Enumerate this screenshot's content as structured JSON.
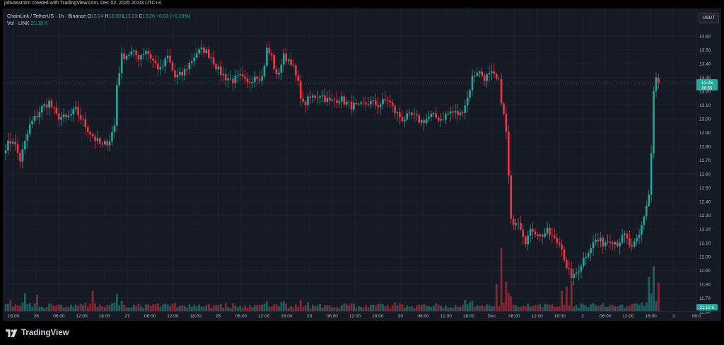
{
  "credit": "jobvassmirn created with TradingView.com, Dec 02, 2025 20:03 UTC+3",
  "legend": {
    "symbol": "ChainLink / TetherUS · 1h · Binance",
    "o_key": "O",
    "o_val": "13.24",
    "h_key": "H",
    "h_val": "13.30",
    "l_key": "L",
    "l_val": "13.23",
    "c_key": "C",
    "c_val": "13.26",
    "change": "+0.03 (+0.23%)",
    "vol_label": "Vol · LINK",
    "vol_value": "21.18 K"
  },
  "currency_button": "USDT",
  "brand": "TradingView",
  "price_tag": {
    "price": "13.26",
    "countdown": "56:55"
  },
  "volume_tag": "21.18 K",
  "colors": {
    "up": "#26a69a",
    "down": "#f23645",
    "background": "#161a25",
    "grid": "#232632"
  },
  "chart_data": {
    "type": "candlestick",
    "symbol": "LINKUSDT",
    "interval": "1h",
    "y_ticks": [
      "13.60",
      "13.50",
      "13.40",
      "13.30",
      "13.20",
      "13.10",
      "13.00",
      "12.90",
      "12.80",
      "12.70",
      "12.60",
      "12.50",
      "12.40",
      "12.30",
      "12.20",
      "12.10",
      "12.00",
      "11.90",
      "11.80",
      "11.70",
      "11.60"
    ],
    "ylim": [
      11.6,
      13.62
    ],
    "x_ticks": [
      "18:00",
      "26",
      "06:00",
      "12:00",
      "18:00",
      "27",
      "06:00",
      "12:00",
      "18:00",
      "28",
      "06:00",
      "12:00",
      "18:00",
      "29",
      "06:00",
      "12:00",
      "18:00",
      "30",
      "06:00",
      "12:00",
      "18:00",
      "Dec",
      "06:00",
      "12:00",
      "18:00",
      "2",
      "06:00",
      "12:00",
      "18:00",
      "3",
      "06:0"
    ],
    "last_price": 13.26,
    "anchors": [
      [
        0,
        12.8
      ],
      [
        3,
        12.85
      ],
      [
        6,
        12.7
      ],
      [
        10,
        12.95
      ],
      [
        15,
        13.08
      ],
      [
        18,
        13.12
      ],
      [
        21,
        13.02
      ],
      [
        25,
        13.0
      ],
      [
        29,
        13.06
      ],
      [
        33,
        12.95
      ],
      [
        37,
        12.85
      ],
      [
        40,
        12.8
      ],
      [
        43,
        12.85
      ],
      [
        45,
        12.95
      ],
      [
        46,
        13.25
      ],
      [
        48,
        13.45
      ],
      [
        52,
        13.48
      ],
      [
        55,
        13.45
      ],
      [
        58,
        13.5
      ],
      [
        61,
        13.42
      ],
      [
        64,
        13.35
      ],
      [
        67,
        13.45
      ],
      [
        70,
        13.3
      ],
      [
        73,
        13.32
      ],
      [
        76,
        13.4
      ],
      [
        79,
        13.48
      ],
      [
        82,
        13.5
      ],
      [
        85,
        13.45
      ],
      [
        88,
        13.35
      ],
      [
        91,
        13.3
      ],
      [
        94,
        13.28
      ],
      [
        97,
        13.3
      ],
      [
        100,
        13.25
      ],
      [
        103,
        13.32
      ],
      [
        106,
        13.3
      ],
      [
        108,
        13.5
      ],
      [
        110,
        13.45
      ],
      [
        112,
        13.3
      ],
      [
        115,
        13.45
      ],
      [
        118,
        13.42
      ],
      [
        121,
        13.25
      ],
      [
        123,
        13.1
      ],
      [
        126,
        13.15
      ],
      [
        130,
        13.18
      ],
      [
        134,
        13.12
      ],
      [
        138,
        13.15
      ],
      [
        142,
        13.1
      ],
      [
        146,
        13.08
      ],
      [
        150,
        13.12
      ],
      [
        154,
        13.1
      ],
      [
        158,
        13.14
      ],
      [
        161,
        13.05
      ],
      [
        164,
        13.0
      ],
      [
        168,
        13.02
      ],
      [
        172,
        12.98
      ],
      [
        176,
        13.02
      ],
      [
        180,
        13.0
      ],
      [
        184,
        13.05
      ],
      [
        188,
        13.03
      ],
      [
        191,
        13.15
      ],
      [
        193,
        13.3
      ],
      [
        195,
        13.35
      ],
      [
        198,
        13.3
      ],
      [
        201,
        13.32
      ],
      [
        204,
        13.26
      ],
      [
        207,
        12.9
      ],
      [
        209,
        12.25
      ],
      [
        212,
        12.27
      ],
      [
        215,
        12.12
      ],
      [
        218,
        12.2
      ],
      [
        221,
        12.15
      ],
      [
        224,
        12.18
      ],
      [
        227,
        12.12
      ],
      [
        230,
        12.08
      ],
      [
        232,
        11.9
      ],
      [
        235,
        11.85
      ],
      [
        238,
        11.95
      ],
      [
        241,
        12.05
      ],
      [
        244,
        12.12
      ],
      [
        247,
        12.1
      ],
      [
        250,
        12.13
      ],
      [
        253,
        12.1
      ],
      [
        256,
        12.15
      ],
      [
        259,
        12.05
      ],
      [
        262,
        12.15
      ],
      [
        264,
        12.3
      ],
      [
        266,
        12.45
      ],
      [
        267,
        12.75
      ],
      [
        268,
        13.2
      ],
      [
        269,
        13.3
      ],
      [
        270,
        13.26
      ],
      [
        271,
        13.26
      ]
    ],
    "volume_spikes": [
      [
        2,
        0.22
      ],
      [
        8,
        0.37
      ],
      [
        13,
        0.33
      ],
      [
        36,
        0.42
      ],
      [
        46,
        0.35
      ],
      [
        190,
        0.23
      ],
      [
        203,
        0.55
      ],
      [
        205,
        1.3
      ],
      [
        207,
        0.6
      ],
      [
        230,
        0.42
      ],
      [
        232,
        0.5
      ],
      [
        234,
        0.62
      ],
      [
        266,
        0.7
      ],
      [
        268,
        0.92
      ],
      [
        270,
        0.58
      ]
    ],
    "volume_overlay": {
      "ylim": [
        0,
        1.45
      ]
    }
  }
}
